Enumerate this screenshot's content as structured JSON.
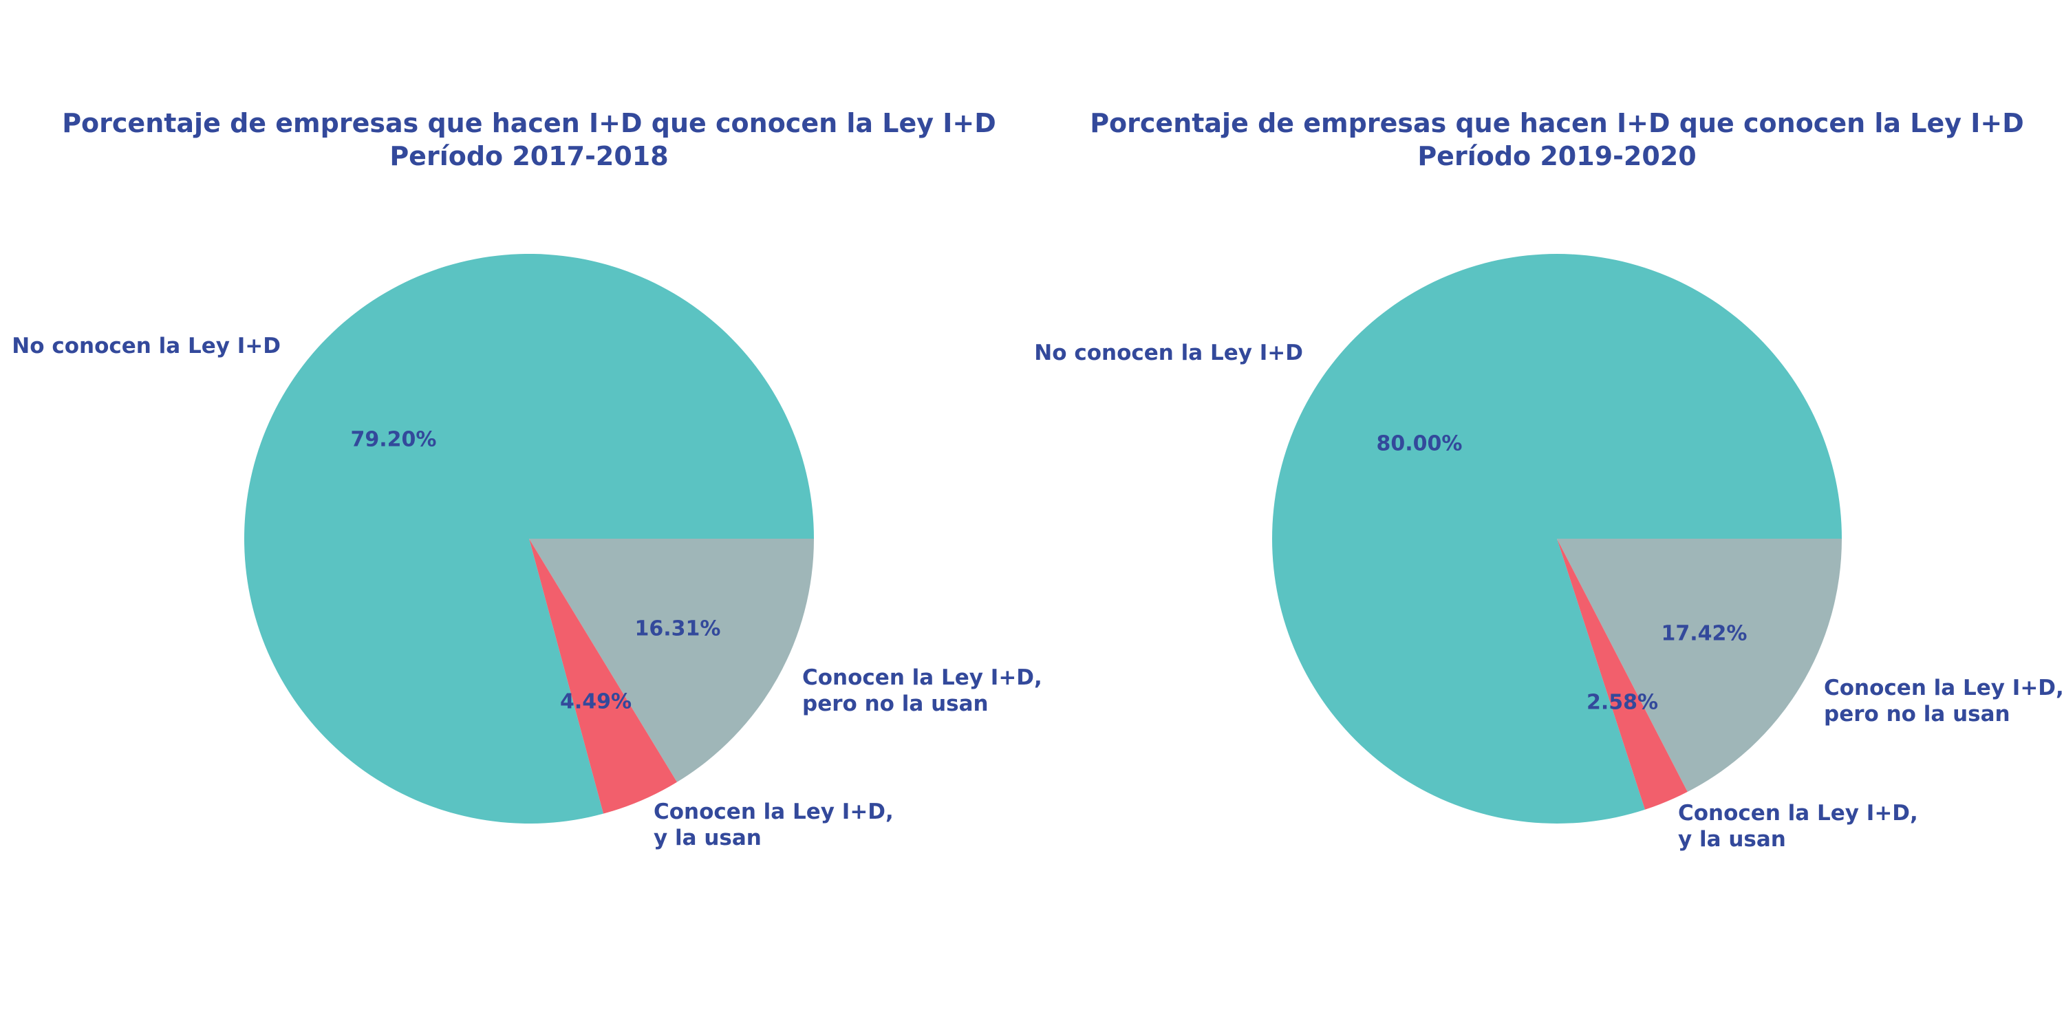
{
  "chart_data": [
    {
      "type": "pie",
      "title_lines": [
        "Porcentaje de empresas que hacen I+D que conocen la Ley I+D",
        "Período 2017-2018"
      ],
      "slices": [
        {
          "label_lines": [
            "Conocen la Ley I+D,",
            "pero no la usan"
          ],
          "value": 16.31,
          "value_label": "16.31%",
          "color": "#9fb6b8"
        },
        {
          "label_lines": [
            "Conocen la Ley I+D,",
            "y la usan"
          ],
          "value": 4.49,
          "value_label": "4.49%",
          "color": "#f25f6c"
        },
        {
          "label_lines": [
            "No conocen la Ley I+D"
          ],
          "value": 79.2,
          "value_label": "79.20%",
          "color": "#5bc3c2"
        }
      ]
    },
    {
      "type": "pie",
      "title_lines": [
        "Porcentaje de empresas que hacen I+D que conocen la Ley I+D",
        "Período 2019-2020"
      ],
      "slices": [
        {
          "label_lines": [
            "Conocen la Ley I+D,",
            "pero no la usan"
          ],
          "value": 17.42,
          "value_label": "17.42%",
          "color": "#9fb6b8"
        },
        {
          "label_lines": [
            "Conocen la Ley I+D,",
            "y la usan"
          ],
          "value": 2.58,
          "value_label": "2.58%",
          "color": "#f25f6c"
        },
        {
          "label_lines": [
            "No conocen la Ley I+D"
          ],
          "value": 80.0,
          "value_label": "80.00%",
          "color": "#5bc3c2"
        }
      ]
    }
  ]
}
